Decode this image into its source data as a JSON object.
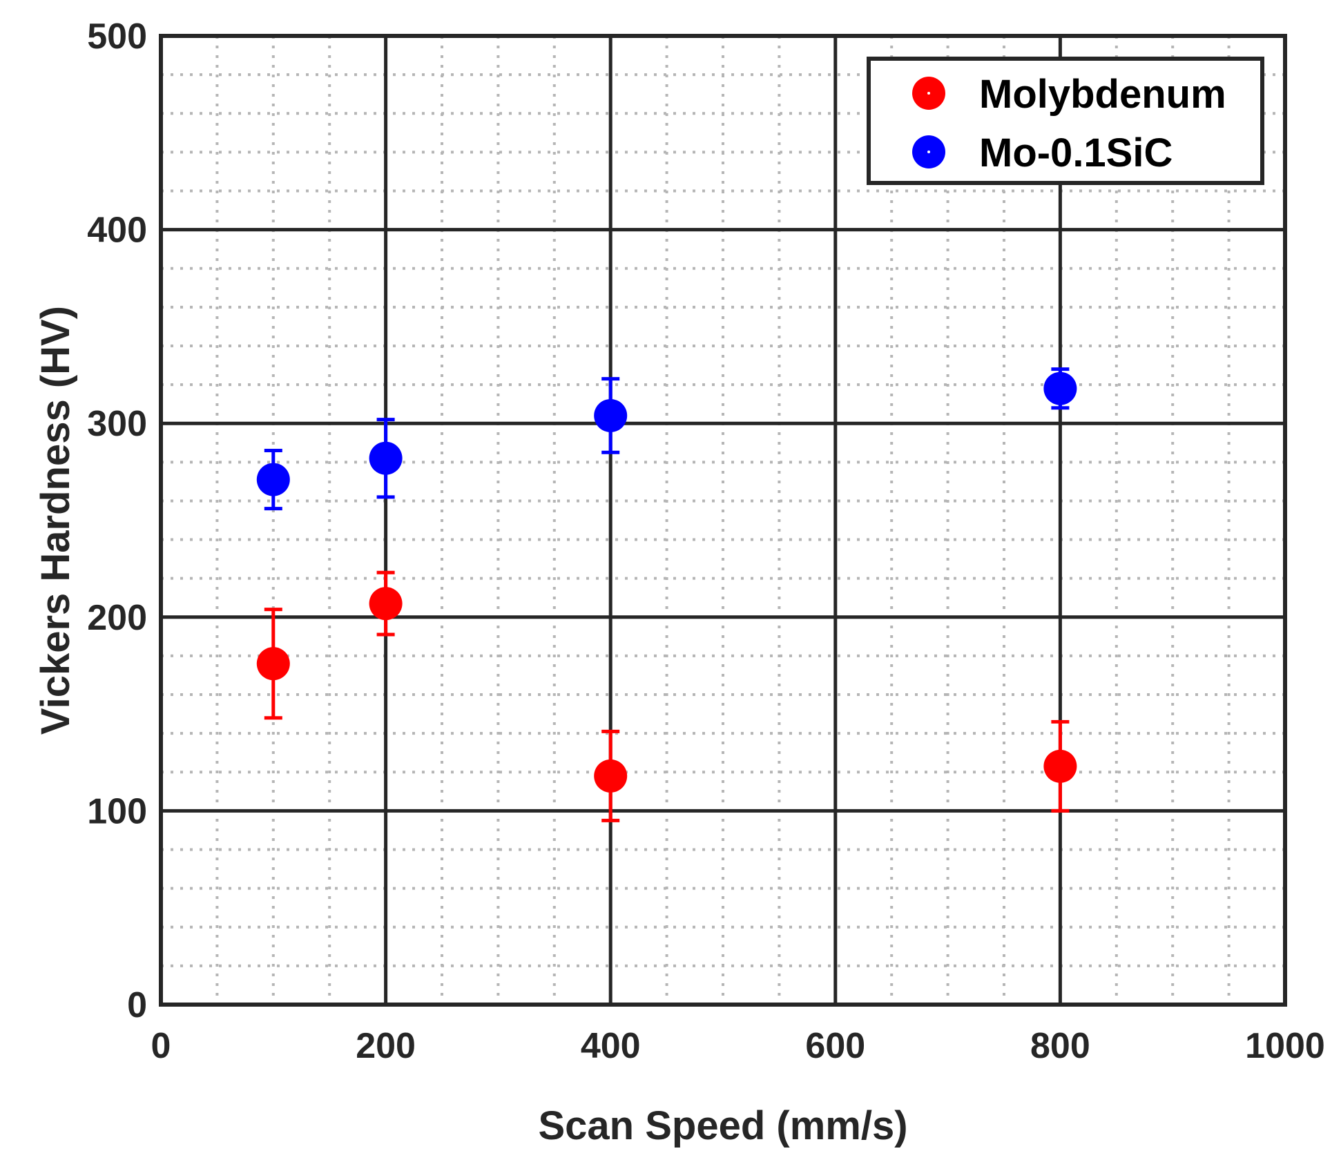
{
  "chart_data": {
    "type": "scatter",
    "title": "",
    "xlabel": "Scan Speed (mm/s)",
    "ylabel": "Vickers Hardness (HV)",
    "xlim": [
      0,
      1000
    ],
    "ylim": [
      0,
      500
    ],
    "xticks": [
      0,
      200,
      400,
      600,
      800,
      1000
    ],
    "yticks": [
      0,
      100,
      200,
      300,
      400,
      500
    ],
    "xtick_labels": [
      "0",
      "200",
      "400",
      "600",
      "800",
      "1000"
    ],
    "ytick_labels": [
      "0",
      "100",
      "200",
      "300",
      "400",
      "500"
    ],
    "x_minor_step": 50,
    "y_minor_step": 20,
    "grid": true,
    "legend_position": "top-right",
    "series": [
      {
        "name": "Molybdenum",
        "color": "#ff0000",
        "points": [
          {
            "x": 100,
            "y": 176,
            "err_low": 148,
            "err_high": 204
          },
          {
            "x": 200,
            "y": 207,
            "err_low": 191,
            "err_high": 223
          },
          {
            "x": 400,
            "y": 118,
            "err_low": 95,
            "err_high": 141
          },
          {
            "x": 800,
            "y": 123,
            "err_low": 100,
            "err_high": 146
          }
        ]
      },
      {
        "name": "Mo-0.1SiC",
        "color": "#0000ff",
        "points": [
          {
            "x": 100,
            "y": 271,
            "err_low": 256,
            "err_high": 286
          },
          {
            "x": 200,
            "y": 282,
            "err_low": 262,
            "err_high": 302
          },
          {
            "x": 400,
            "y": 304,
            "err_low": 285,
            "err_high": 323
          },
          {
            "x": 800,
            "y": 318,
            "err_low": 308,
            "err_high": 328
          }
        ]
      }
    ]
  }
}
